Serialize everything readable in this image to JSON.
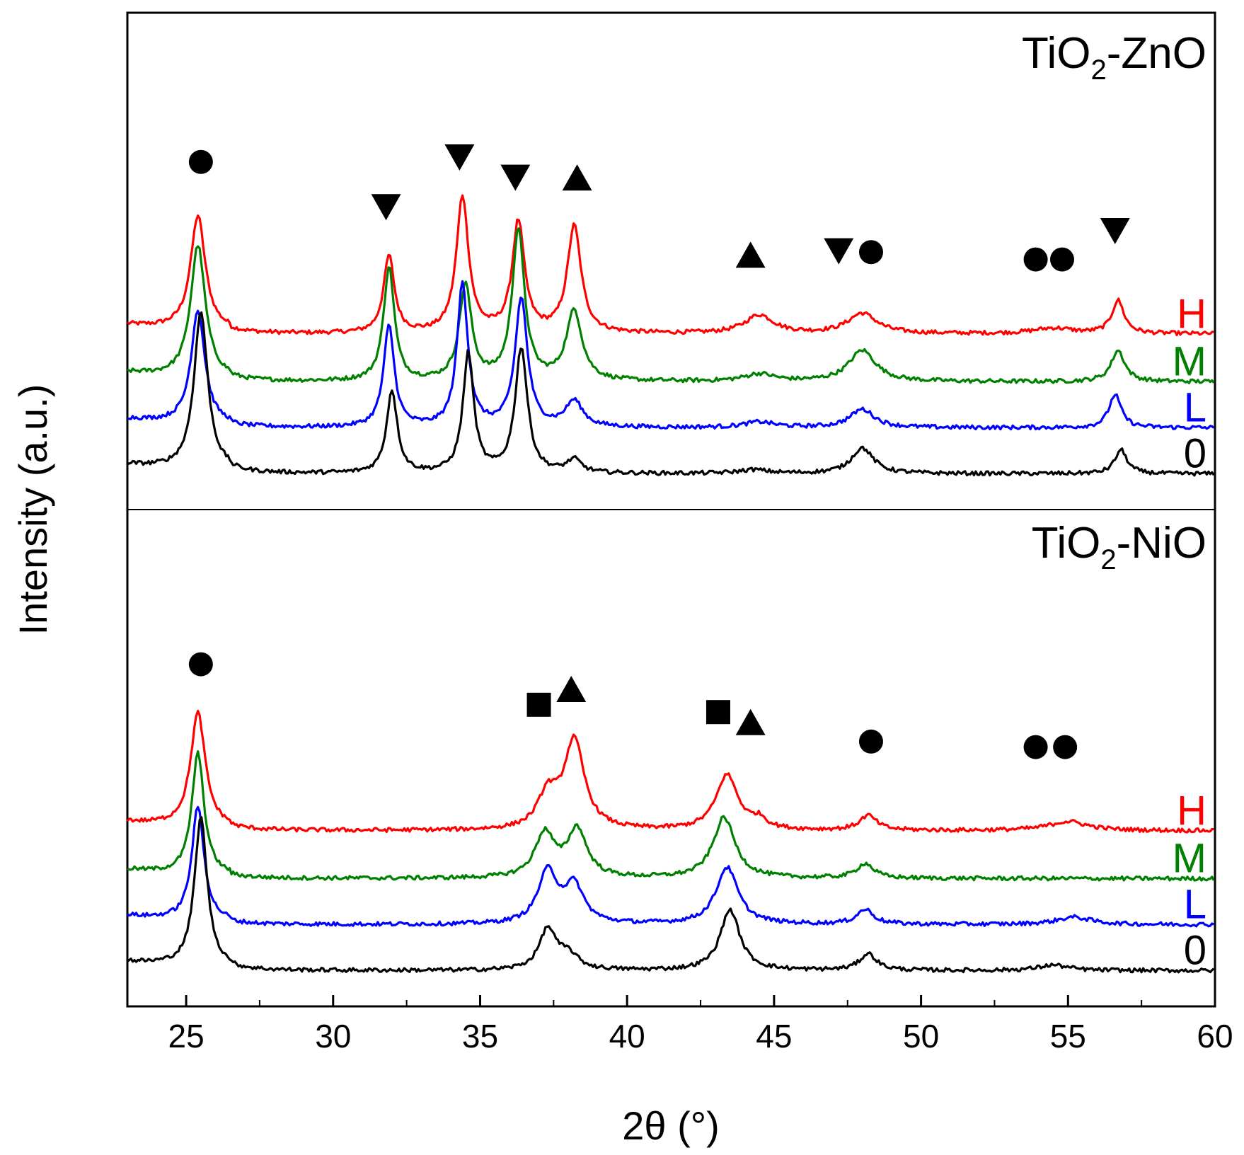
{
  "chart_data": {
    "type": "line",
    "xlabel": "2θ (°)",
    "ylabel": "Intensity (a.u.)",
    "xlim": [
      23,
      60
    ],
    "xticks": [
      25,
      30,
      35,
      40,
      45,
      50,
      55,
      60
    ],
    "xtick_labels": [
      "25",
      "30",
      "35",
      "40",
      "45",
      "50",
      "55",
      "60"
    ],
    "y_ticks_shown": false,
    "legend_markers": {
      "circle": "●",
      "triangle_down": "▼",
      "triangle_up": "▲",
      "square": "■"
    },
    "colors": {
      "H": "#ff0000",
      "M": "#008000",
      "L": "#0000ff",
      "0": "#000000"
    },
    "panels": [
      {
        "id": "top",
        "title_main": "TiO",
        "title_sub": "2",
        "title_suffix": "-ZnO",
        "title": "TiO2-ZnO",
        "series": [
          {
            "name": "H",
            "offset": 0.76,
            "baseline": 0.1,
            "peaks": [
              {
                "x": 25.4,
                "h": 0.62,
                "w": 0.3
              },
              {
                "x": 31.9,
                "h": 0.42,
                "w": 0.22
              },
              {
                "x": 34.4,
                "h": 0.74,
                "w": 0.25
              },
              {
                "x": 36.3,
                "h": 0.6,
                "w": 0.25
              },
              {
                "x": 38.2,
                "h": 0.58,
                "w": 0.28
              },
              {
                "x": 44.5,
                "h": 0.1,
                "w": 0.6
              },
              {
                "x": 48.0,
                "h": 0.11,
                "w": 0.6
              },
              {
                "x": 54.5,
                "h": 0.03,
                "w": 0.8
              },
              {
                "x": 56.7,
                "h": 0.18,
                "w": 0.25
              }
            ]
          },
          {
            "name": "M",
            "offset": 0.5,
            "baseline": 0.1,
            "peaks": [
              {
                "x": 25.4,
                "h": 0.72,
                "w": 0.3
              },
              {
                "x": 31.9,
                "h": 0.62,
                "w": 0.22
              },
              {
                "x": 34.5,
                "h": 0.52,
                "w": 0.25
              },
              {
                "x": 36.3,
                "h": 0.82,
                "w": 0.25
              },
              {
                "x": 38.2,
                "h": 0.38,
                "w": 0.32
              },
              {
                "x": 44.5,
                "h": 0.04,
                "w": 0.6
              },
              {
                "x": 48.0,
                "h": 0.17,
                "w": 0.55
              },
              {
                "x": 56.7,
                "h": 0.17,
                "w": 0.28
              }
            ]
          },
          {
            "name": "L",
            "offset": 0.25,
            "baseline": 0.1,
            "peaks": [
              {
                "x": 25.4,
                "h": 0.62,
                "w": 0.28
              },
              {
                "x": 31.9,
                "h": 0.55,
                "w": 0.22
              },
              {
                "x": 34.4,
                "h": 0.78,
                "w": 0.22
              },
              {
                "x": 36.4,
                "h": 0.7,
                "w": 0.25
              },
              {
                "x": 38.2,
                "h": 0.14,
                "w": 0.35
              },
              {
                "x": 44.5,
                "h": 0.03,
                "w": 0.6
              },
              {
                "x": 48.0,
                "h": 0.1,
                "w": 0.5
              },
              {
                "x": 56.6,
                "h": 0.18,
                "w": 0.25
              }
            ]
          },
          {
            "name": "0",
            "offset": 0.0,
            "baseline": 0.1,
            "peaks": [
              {
                "x": 25.5,
                "h": 0.86,
                "w": 0.28
              },
              {
                "x": 32.0,
                "h": 0.45,
                "w": 0.22
              },
              {
                "x": 34.6,
                "h": 0.65,
                "w": 0.22
              },
              {
                "x": 36.4,
                "h": 0.68,
                "w": 0.25
              },
              {
                "x": 38.2,
                "h": 0.07,
                "w": 0.3
              },
              {
                "x": 44.3,
                "h": 0.02,
                "w": 0.6
              },
              {
                "x": 48.0,
                "h": 0.14,
                "w": 0.45
              },
              {
                "x": 56.8,
                "h": 0.13,
                "w": 0.25
              }
            ]
          }
        ],
        "markers": [
          {
            "type": "circle",
            "x": 25.5,
            "y": 1.72
          },
          {
            "type": "triangle_down",
            "x": 31.8,
            "y": 1.48
          },
          {
            "type": "triangle_down",
            "x": 34.3,
            "y": 1.75
          },
          {
            "type": "triangle_down",
            "x": 36.2,
            "y": 1.64
          },
          {
            "type": "triangle_up",
            "x": 38.3,
            "y": 1.63
          },
          {
            "type": "triangle_up",
            "x": 44.2,
            "y": 1.21
          },
          {
            "type": "triangle_down",
            "x": 47.2,
            "y": 1.24
          },
          {
            "type": "circle",
            "x": 48.3,
            "y": 1.23
          },
          {
            "type": "circle",
            "x": 53.9,
            "y": 1.19
          },
          {
            "type": "circle",
            "x": 54.8,
            "y": 1.19
          },
          {
            "type": "triangle_down",
            "x": 56.6,
            "y": 1.35
          }
        ]
      },
      {
        "id": "bottom",
        "title_main": "TiO",
        "title_sub": "2",
        "title_suffix": "-NiO",
        "title": "TiO2-NiO",
        "series": [
          {
            "name": "H",
            "offset": 0.76,
            "baseline": 0.1,
            "peaks": [
              {
                "x": 25.4,
                "h": 0.62,
                "w": 0.3
              },
              {
                "x": 37.3,
                "h": 0.18,
                "w": 0.4
              },
              {
                "x": 38.2,
                "h": 0.48,
                "w": 0.42
              },
              {
                "x": 43.4,
                "h": 0.3,
                "w": 0.45
              },
              {
                "x": 44.5,
                "h": 0.05,
                "w": 0.3
              },
              {
                "x": 48.2,
                "h": 0.08,
                "w": 0.35
              },
              {
                "x": 55.0,
                "h": 0.05,
                "w": 0.8
              }
            ]
          },
          {
            "name": "M",
            "offset": 0.5,
            "baseline": 0.1,
            "peaks": [
              {
                "x": 25.4,
                "h": 0.66,
                "w": 0.25
              },
              {
                "x": 37.2,
                "h": 0.24,
                "w": 0.4
              },
              {
                "x": 38.3,
                "h": 0.26,
                "w": 0.4
              },
              {
                "x": 43.3,
                "h": 0.33,
                "w": 0.45
              },
              {
                "x": 48.1,
                "h": 0.08,
                "w": 0.35
              }
            ]
          },
          {
            "name": "L",
            "offset": 0.25,
            "baseline": 0.1,
            "peaks": [
              {
                "x": 25.4,
                "h": 0.62,
                "w": 0.25
              },
              {
                "x": 37.3,
                "h": 0.28,
                "w": 0.4
              },
              {
                "x": 38.2,
                "h": 0.2,
                "w": 0.4
              },
              {
                "x": 43.4,
                "h": 0.31,
                "w": 0.45
              },
              {
                "x": 48.1,
                "h": 0.08,
                "w": 0.35
              },
              {
                "x": 55.2,
                "h": 0.04,
                "w": 0.7
              }
            ]
          },
          {
            "name": "0",
            "offset": 0.0,
            "baseline": 0.1,
            "peaks": [
              {
                "x": 25.5,
                "h": 0.81,
                "w": 0.26
              },
              {
                "x": 37.3,
                "h": 0.22,
                "w": 0.35
              },
              {
                "x": 38.0,
                "h": 0.08,
                "w": 0.4
              },
              {
                "x": 43.5,
                "h": 0.33,
                "w": 0.4
              },
              {
                "x": 48.2,
                "h": 0.09,
                "w": 0.35
              },
              {
                "x": 54.5,
                "h": 0.03,
                "w": 0.6
              }
            ]
          }
        ],
        "markers": [
          {
            "type": "circle",
            "x": 25.5,
            "y": 1.69
          },
          {
            "type": "square",
            "x": 37.0,
            "y": 1.47
          },
          {
            "type": "triangle_up",
            "x": 38.1,
            "y": 1.55
          },
          {
            "type": "square",
            "x": 43.1,
            "y": 1.43
          },
          {
            "type": "triangle_up",
            "x": 44.2,
            "y": 1.37
          },
          {
            "type": "circle",
            "x": 48.3,
            "y": 1.27
          },
          {
            "type": "circle",
            "x": 53.9,
            "y": 1.24
          },
          {
            "type": "circle",
            "x": 54.9,
            "y": 1.24
          }
        ]
      }
    ]
  }
}
